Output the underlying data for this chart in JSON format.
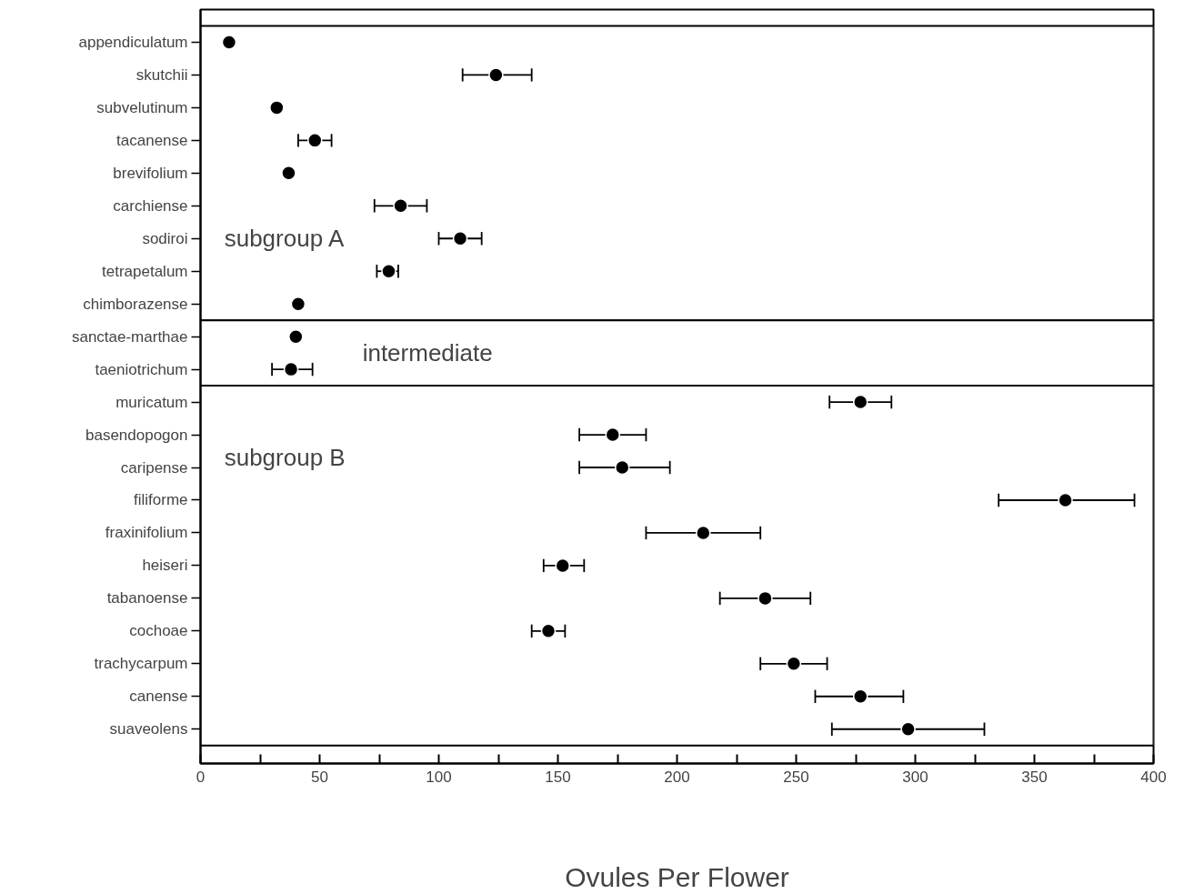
{
  "chart_data": {
    "type": "scatter",
    "orientation": "horizontal",
    "xlabel": "Ovules Per Flower",
    "categories": [
      "appendiculatum",
      "skutchii",
      "subvelutinum",
      "tacanense",
      "brevifolium",
      "carchiense",
      "sodiroi",
      "tetrapetalum",
      "chimborazense",
      "sanctae-marthae",
      "taeniotrichum",
      "muricatum",
      "basendopogon",
      "caripense",
      "filiforme",
      "fraxinifolium",
      "heiseri",
      "tabanoense",
      "cochoae",
      "trachycarpum",
      "canense",
      "suaveolens"
    ],
    "values": [
      12,
      124,
      32,
      48,
      37,
      84,
      109,
      79,
      41,
      40,
      38,
      277,
      173,
      177,
      363,
      211,
      152,
      237,
      146,
      249,
      277,
      297
    ],
    "errors": [
      null,
      [
        110,
        139
      ],
      null,
      [
        41,
        55
      ],
      null,
      [
        73,
        95
      ],
      [
        100,
        118
      ],
      [
        74,
        83
      ],
      null,
      null,
      [
        30,
        47
      ],
      [
        264,
        290
      ],
      [
        159,
        187
      ],
      [
        159,
        197
      ],
      [
        335,
        392
      ],
      [
        187,
        235
      ],
      [
        144,
        161
      ],
      [
        218,
        256
      ],
      [
        139,
        153
      ],
      [
        235,
        263
      ],
      [
        258,
        295
      ],
      [
        265,
        329
      ]
    ],
    "color": "#000000",
    "marker": "circle",
    "grid": false,
    "xlim": [
      0,
      400
    ],
    "xticks": [
      0,
      {
        "value": 25,
        "label": null
      },
      50,
      {
        "value": 75,
        "label": null
      },
      100,
      {
        "value": 125,
        "label": null
      },
      150,
      {
        "value": 175,
        "label": null
      },
      200,
      {
        "value": 225,
        "label": null
      },
      250,
      {
        "value": 275,
        "label": null
      },
      300,
      {
        "value": 325,
        "label": null
      },
      350,
      {
        "value": 375,
        "label": null
      },
      400
    ],
    "bands": [
      {
        "axis": "y",
        "from": "appendiculatum",
        "to": "chimborazense",
        "label": "subgroup  A",
        "color": "#ffffff"
      },
      {
        "axis": "y",
        "from": "sanctae-marthae",
        "to": "taeniotrichum",
        "label": "intermediate",
        "color": "#ffffff"
      },
      {
        "axis": "y",
        "from": "muricatum",
        "to": "suaveolens",
        "label": "subgroup  B",
        "color": "#ffffff"
      }
    ]
  }
}
